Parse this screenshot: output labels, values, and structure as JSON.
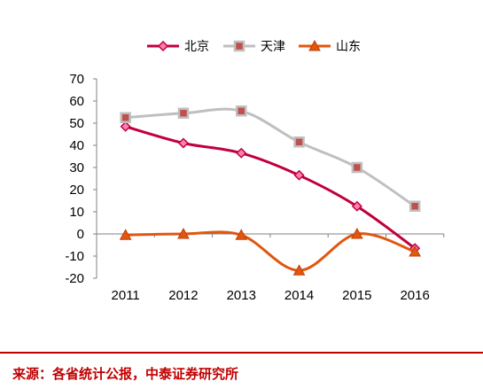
{
  "chart_data": {
    "type": "line",
    "categories": [
      "2011",
      "2012",
      "2013",
      "2014",
      "2015",
      "2016"
    ],
    "series": [
      {
        "name": "北京",
        "values": [
          48.5,
          41,
          36.5,
          26.5,
          12.5,
          -6.5
        ],
        "color": "#c0003c",
        "marker": "diamond"
      },
      {
        "name": "天津",
        "values": [
          52.5,
          54.5,
          55.5,
          41.5,
          30,
          12.5
        ],
        "color": "#bfbfbf",
        "marker": "square"
      },
      {
        "name": "山东",
        "values": [
          -0.5,
          0,
          -0.5,
          -16.5,
          0,
          -8
        ],
        "color": "#e0570f",
        "marker": "triangle"
      }
    ],
    "yticks": [
      "70",
      "60",
      "50",
      "40",
      "30",
      "20",
      "10",
      "0",
      "-10",
      "-20"
    ],
    "ylim": [
      -20,
      70
    ],
    "smooth": true,
    "grid": false,
    "legend_position": "top"
  },
  "source_text": "来源：各省统计公报，中泰证券研究所"
}
